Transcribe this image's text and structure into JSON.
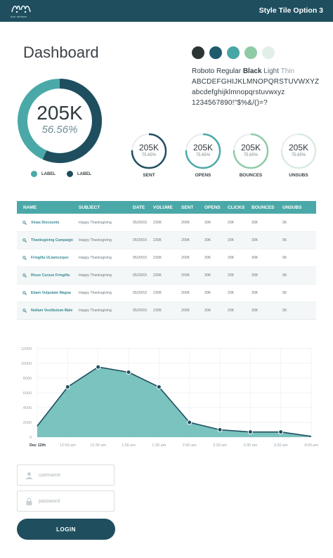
{
  "header": {
    "logo_text": "dos mieses",
    "title": "Style Tile Option 3"
  },
  "dashboard": {
    "title": "Dashboard",
    "big_metric": {
      "value": "205K",
      "percent": "56.56%",
      "fraction": 0.5656
    },
    "legend": [
      {
        "label": "LABEL",
        "color": "#4aa9a8"
      },
      {
        "label": "LABEL",
        "color": "#1f4e5f"
      }
    ]
  },
  "palette": {
    "swatches": [
      "#2d3436",
      "#1f5a6d",
      "#46a7a6",
      "#8fcaa6",
      "#e2efe8"
    ]
  },
  "typography": {
    "font_name": "Roboto Regular",
    "weight_black": "Black",
    "weight_light": "Light",
    "weight_thin": "Thin",
    "uppercase": "ABCDEFGHIJKLMNOPQRSTUVWXYZ",
    "lowercase": "abcdefghijklmnopqrstuvwxyz",
    "numbers": "1234567890!\"$%&/()=?"
  },
  "mini_metrics": [
    {
      "value": "205K",
      "percent": "75.65%",
      "label": "SENT",
      "fraction": 0.7565,
      "color": "#1f4e5f"
    },
    {
      "value": "205K",
      "percent": "75.65%",
      "label": "OPENS",
      "fraction": 0.7565,
      "color": "#4aa9a8"
    },
    {
      "value": "205K",
      "percent": "75.65%",
      "label": "BOUNCES",
      "fraction": 0.7565,
      "color": "#8fcaa6"
    },
    {
      "value": "205K",
      "percent": "75.65%",
      "label": "UNSUBS",
      "fraction": 0.7565,
      "color": "#d9ebe1"
    }
  ],
  "table": {
    "headers": [
      "NAME",
      "SUBJECT",
      "DATE",
      "VOLUME",
      "SENT",
      "OPENS",
      "CLICKS",
      "BOUNCES",
      "UNSUBS"
    ],
    "rows": [
      [
        "Xmas Discounts",
        "Happy Thanksgiving",
        "05/29/15",
        "230K",
        "200K",
        "30K",
        "20K",
        "30K",
        "5K"
      ],
      [
        "Thanksgiving Campaign",
        "Happy Thanksgiving",
        "05/29/15",
        "230K",
        "200K",
        "30K",
        "20K",
        "30K",
        "5K"
      ],
      [
        "Fringilla ULlamcorper",
        "Happy Thanksgiving",
        "05/29/15",
        "230K",
        "200K",
        "30K",
        "20K",
        "30K",
        "5K"
      ],
      [
        "Risus Cursus Fringilla",
        "Happy Thanksgiving",
        "05/29/15",
        "230K",
        "200K",
        "30K",
        "20K",
        "30K",
        "5K"
      ],
      [
        "Etiam Vulputate Magna",
        "Happy Thanksgiving",
        "05/29/15",
        "230K",
        "200K",
        "30K",
        "20K",
        "30K",
        "5K"
      ],
      [
        "Nullam Vestibulum Male",
        "Happy Thanksgiving",
        "05/29/15",
        "230K",
        "200K",
        "30K",
        "20K",
        "30K",
        "5K"
      ]
    ]
  },
  "chart_data": {
    "type": "area",
    "title": "",
    "xlabel": "",
    "ylabel": "",
    "ylim": [
      0,
      12000
    ],
    "yticks": [
      0,
      2000,
      4000,
      6000,
      8000,
      10000,
      12000
    ],
    "x_labels": [
      "Dec 12th",
      "12:00 am",
      "12:30 am",
      "1:00 am",
      "1:30 am",
      "2:00 am",
      "2:30 am",
      "3:00 am",
      "3:30 am",
      "4:00 am"
    ],
    "series": [
      {
        "values": [
          1500,
          6800,
          9500,
          8800,
          6800,
          2000,
          1000,
          700,
          700,
          100
        ]
      }
    ],
    "grid": true,
    "fill_color": "#6bbcb7",
    "line_color": "#1f4e5f"
  },
  "login": {
    "username_placeholder": "username",
    "password_placeholder": "password",
    "button_label": "LOGIN"
  }
}
